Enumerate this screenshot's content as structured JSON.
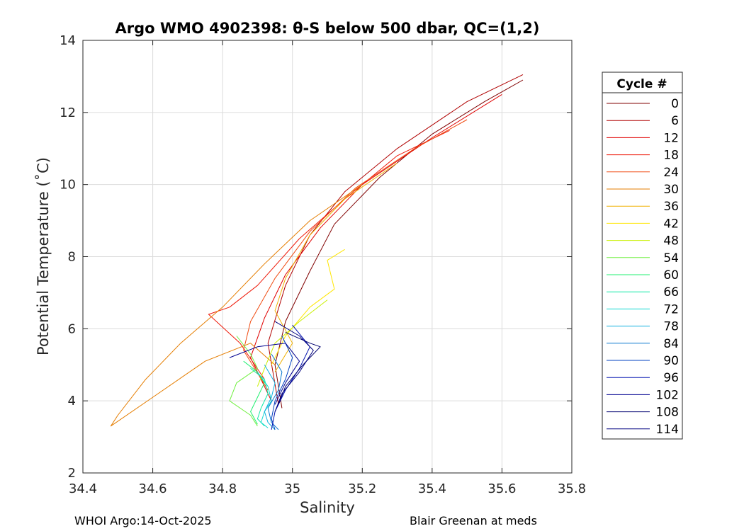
{
  "chart_data": {
    "type": "line",
    "title": "Argo WMO 4902398: θ-S below 500 dbar,  QC=(1,2)",
    "xlabel": "Salinity",
    "ylabel": "Potential Temperature (˚C)",
    "xlim": [
      34.4,
      35.8
    ],
    "ylim": [
      2,
      14
    ],
    "xticks": [
      "34.4",
      "34.6",
      "34.8",
      "35",
      "35.2",
      "35.4",
      "35.6",
      "35.8"
    ],
    "yticks": [
      "2",
      "4",
      "6",
      "8",
      "10",
      "12",
      "14"
    ],
    "grid": true,
    "legend": {
      "title": "Cycle #",
      "placement": "outside-right",
      "entries": [
        {
          "label": "0",
          "color": "#800000"
        },
        {
          "label": "6",
          "color": "#b00000"
        },
        {
          "label": "12",
          "color": "#e00000"
        },
        {
          "label": "18",
          "color": "#ee1a0a"
        },
        {
          "label": "24",
          "color": "#f04a10"
        },
        {
          "label": "30",
          "color": "#e57d00"
        },
        {
          "label": "36",
          "color": "#f0b000"
        },
        {
          "label": "42",
          "color": "#ffe600"
        },
        {
          "label": "48",
          "color": "#c8f000"
        },
        {
          "label": "54",
          "color": "#70f040"
        },
        {
          "label": "60",
          "color": "#20f070"
        },
        {
          "label": "66",
          "color": "#10e8a8"
        },
        {
          "label": "72",
          "color": "#10d8d0"
        },
        {
          "label": "78",
          "color": "#10b0e0"
        },
        {
          "label": "84",
          "color": "#0a78d0"
        },
        {
          "label": "90",
          "color": "#0040c0"
        },
        {
          "label": "96",
          "color": "#0010b0"
        },
        {
          "label": "102",
          "color": "#000090"
        },
        {
          "label": "108",
          "color": "#000070"
        },
        {
          "label": "114",
          "color": "#000080"
        }
      ]
    },
    "series": [
      {
        "color": "#800000",
        "x": [
          35.66,
          35.55,
          35.4,
          35.25,
          35.12,
          35.05,
          34.98,
          34.95,
          34.97
        ],
        "y": [
          12.9,
          12.3,
          11.4,
          10.2,
          8.9,
          7.6,
          6.2,
          5.0,
          3.8
        ]
      },
      {
        "color": "#b00000",
        "x": [
          35.66,
          35.5,
          35.3,
          35.15,
          35.05,
          34.98,
          34.93,
          34.96
        ],
        "y": [
          13.05,
          12.3,
          11.0,
          9.8,
          8.6,
          7.2,
          5.6,
          3.9
        ]
      },
      {
        "color": "#e00000",
        "x": [
          35.6,
          35.4,
          35.2,
          35.08,
          34.98,
          34.92,
          34.88,
          34.94
        ],
        "y": [
          12.5,
          11.3,
          10.0,
          8.8,
          7.5,
          6.3,
          5.2,
          4.0
        ]
      },
      {
        "color": "#ee1a0a",
        "x": [
          35.45,
          35.3,
          35.15,
          35.02,
          34.9,
          34.82,
          34.76,
          34.85,
          34.92
        ],
        "y": [
          11.5,
          10.8,
          9.6,
          8.5,
          7.2,
          6.6,
          6.4,
          5.6,
          4.6
        ]
      },
      {
        "color": "#f04a10",
        "x": [
          35.5,
          35.35,
          35.18,
          35.05,
          34.95,
          34.88,
          34.86,
          34.93
        ],
        "y": [
          11.8,
          11.0,
          9.9,
          8.7,
          7.4,
          6.2,
          5.4,
          4.3
        ]
      },
      {
        "color": "#e57d00",
        "x": [
          35.2,
          35.05,
          34.92,
          34.8,
          34.68,
          34.62,
          34.58,
          34.5,
          34.48,
          34.6,
          34.75,
          34.88,
          34.95
        ],
        "y": [
          10.0,
          9.0,
          7.8,
          6.6,
          5.6,
          5.0,
          4.6,
          3.6,
          3.3,
          4.1,
          5.1,
          5.6,
          5.0
        ]
      },
      {
        "color": "#f0b000",
        "x": [
          35.3,
          35.15,
          35.05,
          34.98,
          34.95,
          35.0,
          34.95
        ],
        "y": [
          10.6,
          9.6,
          8.6,
          7.4,
          6.5,
          5.6,
          4.8
        ]
      },
      {
        "color": "#ffe600",
        "x": [
          35.15,
          35.1,
          35.12,
          35.05,
          34.98,
          34.94
        ],
        "y": [
          8.2,
          7.9,
          7.1,
          6.6,
          5.8,
          5.0
        ]
      },
      {
        "color": "#c8f000",
        "x": [
          35.1,
          35.02,
          34.95,
          34.92,
          34.9
        ],
        "y": [
          6.8,
          6.2,
          5.6,
          4.9,
          4.4
        ]
      },
      {
        "color": "#70f040",
        "x": [
          34.84,
          34.88,
          34.9,
          34.84,
          34.82,
          34.88,
          34.9
        ],
        "y": [
          5.8,
          5.3,
          4.9,
          4.5,
          4.0,
          3.6,
          3.3
        ]
      },
      {
        "color": "#20f070",
        "x": [
          34.86,
          34.9,
          34.92,
          34.9,
          34.88,
          34.9
        ],
        "y": [
          5.1,
          4.8,
          4.5,
          4.1,
          3.7,
          3.35
        ]
      },
      {
        "color": "#10e8a8",
        "x": [
          34.88,
          34.92,
          34.93,
          34.91,
          34.9,
          34.92
        ],
        "y": [
          4.9,
          4.6,
          4.2,
          3.8,
          3.5,
          3.3
        ]
      },
      {
        "color": "#10d8d0",
        "x": [
          34.9,
          34.93,
          34.94,
          34.92,
          34.91,
          34.93
        ],
        "y": [
          4.8,
          4.4,
          4.0,
          3.7,
          3.4,
          3.25
        ]
      },
      {
        "color": "#10b0e0",
        "x": [
          34.92,
          34.95,
          34.94,
          34.92,
          34.93,
          34.95
        ],
        "y": [
          5.0,
          4.5,
          4.1,
          3.7,
          3.4,
          3.2
        ]
      },
      {
        "color": "#0a78d0",
        "x": [
          34.94,
          34.97,
          34.96,
          34.93,
          34.94,
          34.96
        ],
        "y": [
          5.3,
          4.8,
          4.3,
          3.8,
          3.4,
          3.2
        ]
      },
      {
        "color": "#0040c0",
        "x": [
          34.97,
          35.0,
          34.98,
          34.95,
          34.94,
          34.95
        ],
        "y": [
          5.8,
          5.2,
          4.6,
          4.0,
          3.5,
          3.2
        ]
      },
      {
        "color": "#0010b0",
        "x": [
          35.0,
          35.05,
          35.02,
          34.98,
          34.95,
          34.94
        ],
        "y": [
          6.1,
          5.5,
          4.9,
          4.3,
          3.7,
          3.2
        ]
      },
      {
        "color": "#000090",
        "x": [
          34.82,
          34.9,
          34.98,
          35.02,
          34.98,
          34.95
        ],
        "y": [
          5.2,
          5.5,
          5.6,
          5.1,
          4.5,
          3.9
        ]
      },
      {
        "color": "#000070",
        "x": [
          34.98,
          35.05,
          35.08,
          35.03,
          34.98,
          34.96
        ],
        "y": [
          5.9,
          5.6,
          5.5,
          5.0,
          4.4,
          3.9
        ]
      },
      {
        "color": "#000080",
        "x": [
          34.95,
          35.02,
          35.06,
          35.02,
          34.97,
          34.95
        ],
        "y": [
          6.2,
          5.8,
          5.4,
          4.8,
          4.2,
          3.7
        ]
      }
    ]
  },
  "footer": {
    "left": "WHOI Argo:14-Oct-2025",
    "right": "Blair Greenan at meds"
  }
}
